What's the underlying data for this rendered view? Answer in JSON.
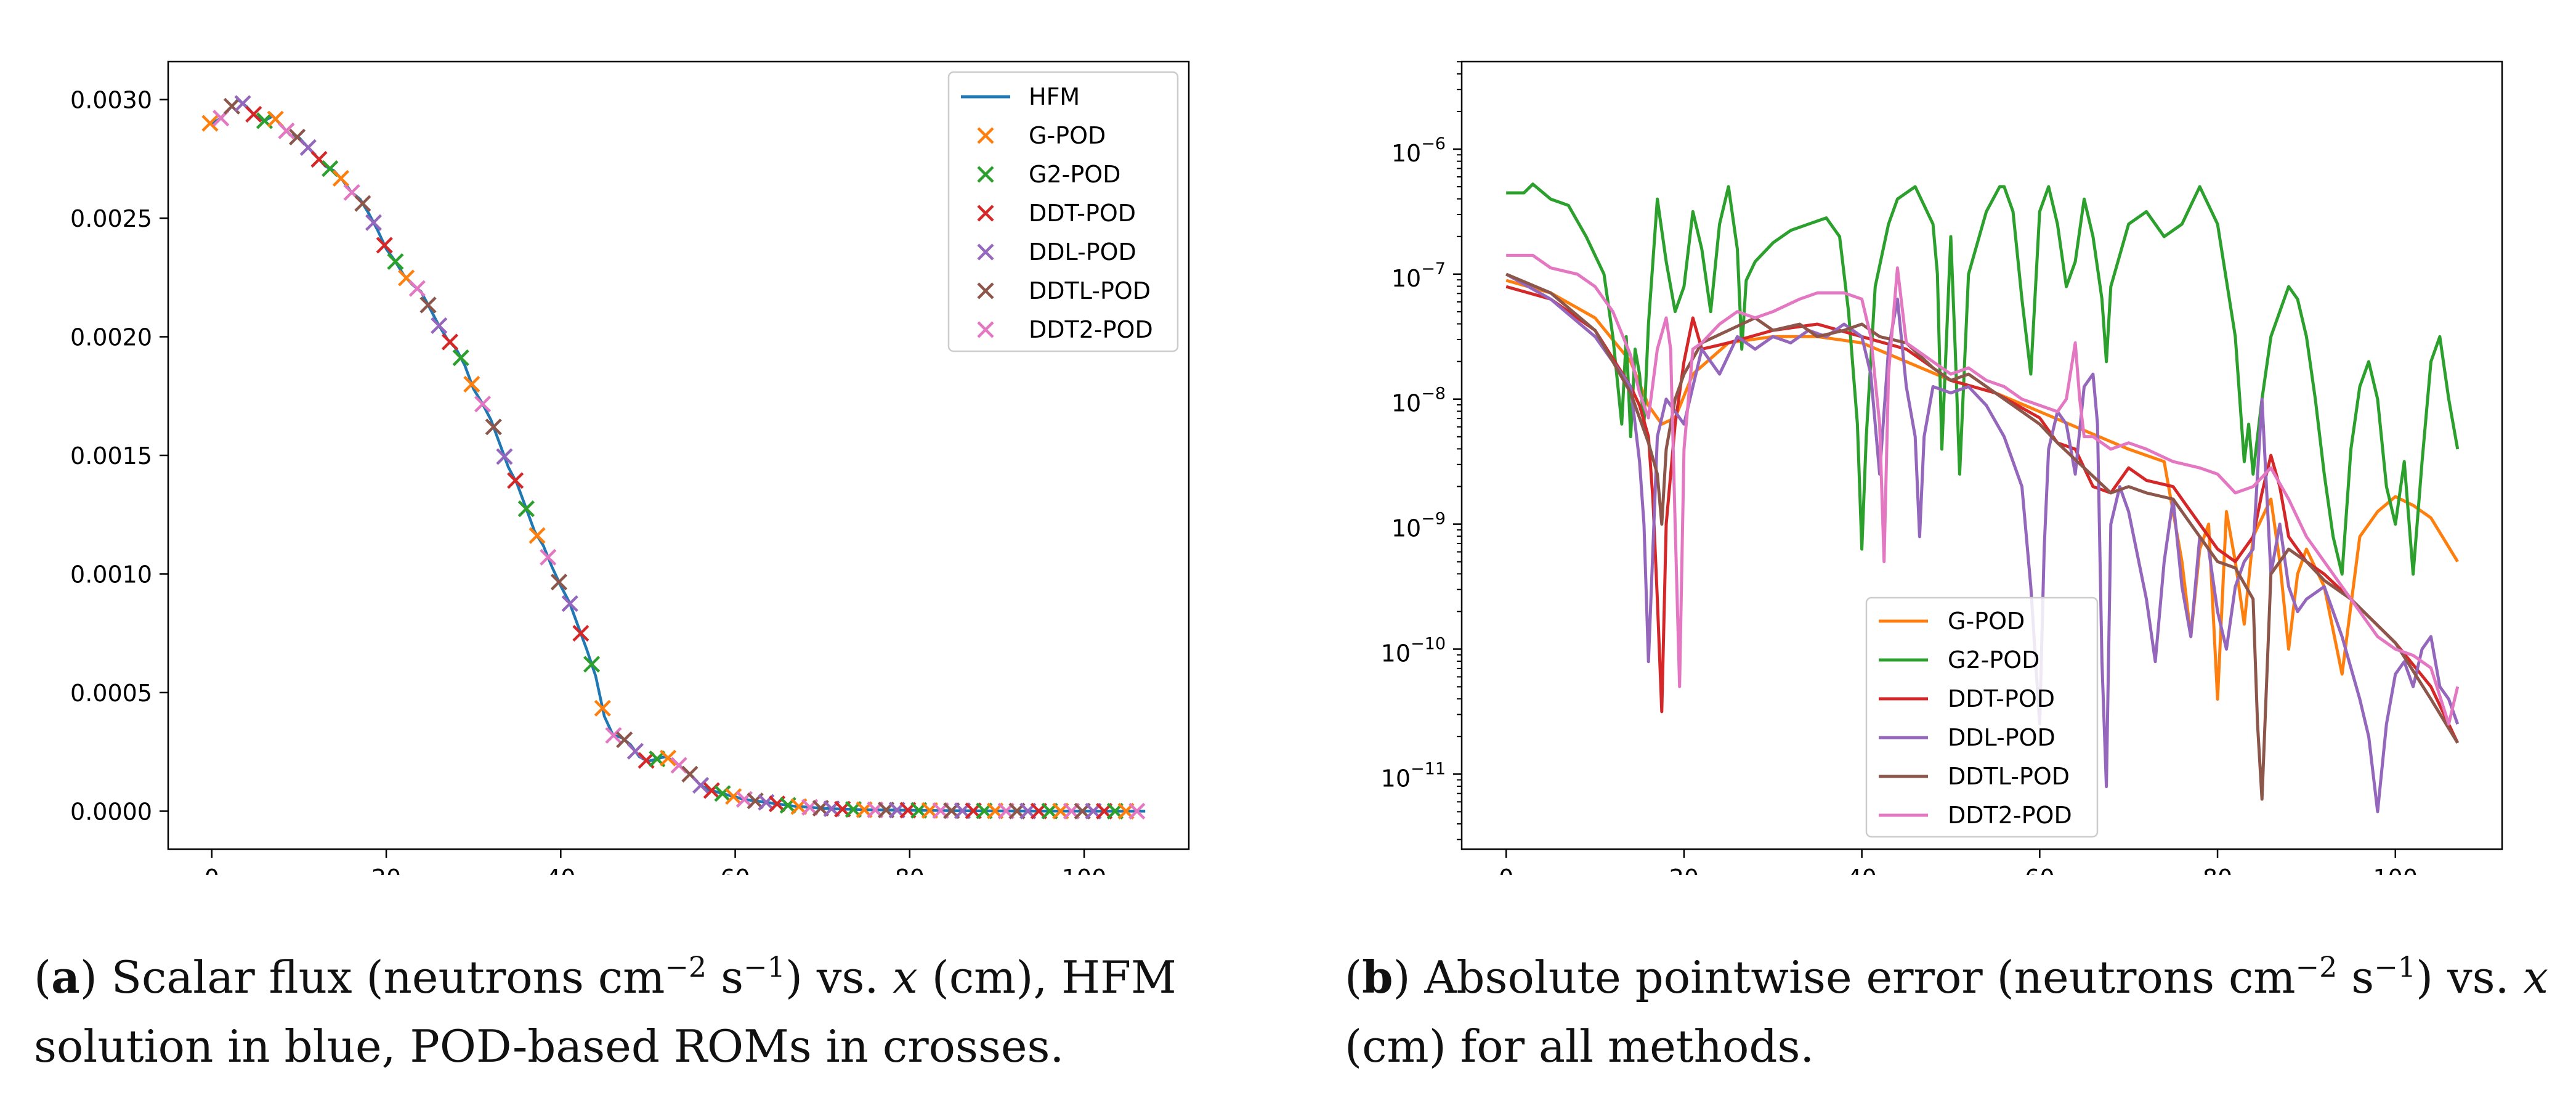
{
  "chart_data": [
    {
      "type": "line",
      "panel": "a",
      "xlim": [
        -5,
        112
      ],
      "ylim": [
        -0.00016,
        0.00316
      ],
      "yscale": "linear",
      "xticks": [
        0,
        20,
        40,
        60,
        80,
        100
      ],
      "yticks": [
        0,
        0.0005,
        0.001,
        0.0015,
        0.002,
        0.0025,
        0.003
      ],
      "xtick_labels": [
        "0",
        "20",
        "40",
        "60",
        "80",
        "100"
      ],
      "ytick_labels": [
        "0.0000",
        "0.0005",
        "0.0010",
        "0.0015",
        "0.0020",
        "0.0025",
        "0.0030"
      ],
      "legend_position": "top-right",
      "hfm_curve": {
        "x": [
          0,
          1,
          2,
          3,
          4,
          5,
          6,
          7,
          8,
          9,
          10,
          11,
          12,
          13,
          14,
          15,
          16,
          17,
          18,
          19,
          20,
          21,
          22,
          23,
          24,
          25,
          26,
          27,
          28,
          29,
          30,
          31,
          32,
          33,
          34,
          35,
          36,
          37,
          38,
          39,
          40,
          41,
          42,
          43,
          44,
          45,
          46,
          47,
          48,
          49,
          50,
          51,
          52,
          53,
          54,
          55,
          56,
          57,
          58,
          59,
          60,
          61,
          62,
          63,
          64,
          65,
          66,
          67,
          68,
          69,
          70,
          72,
          75,
          80,
          85,
          90,
          95,
          100,
          107
        ],
        "y": [
          0.0029,
          0.00292,
          0.00296,
          0.003,
          0.00297,
          0.00293,
          0.00291,
          0.00293,
          0.00289,
          0.00285,
          0.00284,
          0.0028,
          0.00276,
          0.00272,
          0.0027,
          0.00266,
          0.00261,
          0.00258,
          0.00252,
          0.00245,
          0.00237,
          0.00232,
          0.00226,
          0.00222,
          0.00219,
          0.00212,
          0.00205,
          0.00199,
          0.00195,
          0.00188,
          0.00178,
          0.00172,
          0.00165,
          0.00155,
          0.00145,
          0.00138,
          0.00128,
          0.00118,
          0.00112,
          0.00103,
          0.00095,
          0.00088,
          0.00078,
          0.00068,
          0.00057,
          0.0004,
          0.00032,
          0.00031,
          0.00028,
          0.00023,
          0.00021,
          0.00022,
          0.00023,
          0.00021,
          0.00018,
          0.00015,
          0.00011,
          9e-05,
          8e-05,
          7e-05,
          6e-05,
          5e-05,
          4.5e-05,
          4e-05,
          3.5e-05,
          3e-05,
          2.5e-05,
          2e-05,
          1.8e-05,
          1.5e-05,
          1.2e-05,
          9e-06,
          6e-06,
          4e-06,
          2e-06,
          1e-06,
          5e-07,
          2e-07,
          0
        ]
      },
      "series": [
        {
          "name": "HFM",
          "color": "#1f77b4",
          "kind": "line"
        },
        {
          "name": "G-POD",
          "color": "#ff7f0e",
          "kind": "x-marker"
        },
        {
          "name": "G2-POD",
          "color": "#2ca02c",
          "kind": "x-marker"
        },
        {
          "name": "DDT-POD",
          "color": "#d62728",
          "kind": "x-marker"
        },
        {
          "name": "DDL-POD",
          "color": "#9467bd",
          "kind": "x-marker"
        },
        {
          "name": "DDTL-POD",
          "color": "#8c564b",
          "kind": "x-marker"
        },
        {
          "name": "DDT2-POD",
          "color": "#e377c2",
          "kind": "x-marker"
        }
      ]
    },
    {
      "type": "line",
      "panel": "b",
      "xlim": [
        -5,
        112
      ],
      "ylim_log10": [
        -11.6,
        -5.3
      ],
      "yscale": "log",
      "xticks": [
        0,
        20,
        40,
        60,
        80,
        100
      ],
      "xtick_labels": [
        "0",
        "20",
        "40",
        "60",
        "80",
        "100"
      ],
      "ytick_values_log10": [
        -6,
        -7,
        -8,
        -9,
        -10,
        -11
      ],
      "ytick_labels": [
        {
          "base": "10",
          "exp": "−6"
        },
        {
          "base": "10",
          "exp": "−7"
        },
        {
          "base": "10",
          "exp": "−8"
        },
        {
          "base": "10",
          "exp": "−9"
        },
        {
          "base": "10",
          "exp": "−10"
        },
        {
          "base": "10",
          "exp": "−11"
        }
      ],
      "legend_position": "lower-center",
      "series": [
        {
          "name": "G-POD",
          "color": "#ff7f0e",
          "x": [
            0,
            5,
            10,
            14,
            16,
            17.5,
            19,
            21,
            25,
            30,
            35,
            40,
            45,
            50,
            55,
            60,
            65,
            70,
            74,
            76,
            77,
            78,
            79,
            80,
            81,
            82,
            83,
            84,
            86,
            87,
            88,
            89,
            90,
            92,
            94,
            96,
            98,
            100,
            102,
            104,
            107
          ],
          "y": [
            -7.05,
            -7.15,
            -7.35,
            -7.7,
            -8.05,
            -8.2,
            -8.15,
            -7.8,
            -7.55,
            -7.5,
            -7.5,
            -7.55,
            -7.7,
            -7.85,
            -7.95,
            -8.1,
            -8.25,
            -8.4,
            -8.5,
            -9.3,
            -9.9,
            -9.2,
            -9.0,
            -10.4,
            -8.9,
            -9.3,
            -9.8,
            -9.1,
            -8.8,
            -9.3,
            -10.0,
            -9.4,
            -9.2,
            -9.5,
            -10.2,
            -9.1,
            -8.9,
            -8.78,
            -8.85,
            -8.95,
            -9.3
          ]
        },
        {
          "name": "G2-POD",
          "color": "#2ca02c",
          "x": [
            0,
            2,
            3,
            5,
            7,
            9,
            11,
            12,
            13,
            13.5,
            14,
            14.5,
            15,
            15.5,
            16,
            16.5,
            17,
            18,
            19,
            20,
            21,
            22,
            23,
            24,
            25,
            26,
            26.5,
            27,
            28,
            30,
            32,
            34,
            36,
            37.5,
            38.5,
            39.5,
            40,
            40.5,
            41.5,
            43,
            44,
            46,
            47,
            48,
            48.5,
            49,
            50,
            50.5,
            51,
            52,
            54,
            55.5,
            56,
            57,
            58,
            59,
            60,
            61,
            62,
            63,
            64,
            65,
            66,
            67,
            67.5,
            68,
            70,
            72,
            74,
            76,
            77,
            78,
            80,
            82,
            83,
            83.5,
            84,
            85,
            86,
            87,
            88,
            89,
            90,
            91,
            92,
            93,
            94,
            95,
            96,
            97,
            98,
            99,
            100,
            101,
            102,
            103,
            104,
            105,
            106,
            107
          ],
          "y": [
            -6.35,
            -6.35,
            -6.28,
            -6.4,
            -6.45,
            -6.7,
            -7.0,
            -7.5,
            -8.2,
            -7.5,
            -8.3,
            -7.6,
            -7.8,
            -8.2,
            -7.4,
            -6.9,
            -6.4,
            -6.9,
            -7.3,
            -7.1,
            -6.5,
            -6.8,
            -7.3,
            -6.6,
            -6.3,
            -6.8,
            -7.6,
            -7.05,
            -6.9,
            -6.75,
            -6.65,
            -6.6,
            -6.55,
            -6.7,
            -7.3,
            -8.2,
            -9.2,
            -8.3,
            -7.1,
            -6.6,
            -6.4,
            -6.3,
            -6.45,
            -6.6,
            -7.0,
            -8.4,
            -6.7,
            -7.6,
            -8.6,
            -7.0,
            -6.5,
            -6.3,
            -6.3,
            -6.5,
            -7.2,
            -7.8,
            -6.5,
            -6.3,
            -6.6,
            -7.1,
            -6.9,
            -6.4,
            -6.7,
            -7.2,
            -7.7,
            -7.1,
            -6.6,
            -6.5,
            -6.7,
            -6.6,
            -6.45,
            -6.3,
            -6.6,
            -7.5,
            -8.5,
            -8.2,
            -8.6,
            -8.0,
            -7.5,
            -7.3,
            -7.1,
            -7.2,
            -7.5,
            -8.0,
            -8.6,
            -9.1,
            -9.4,
            -8.4,
            -7.9,
            -7.7,
            -8.0,
            -8.7,
            -9.0,
            -8.5,
            -9.4,
            -8.5,
            -7.7,
            -7.5,
            -8.0,
            -8.4
          ]
        },
        {
          "name": "DDT-POD",
          "color": "#d62728",
          "x": [
            0,
            5,
            10,
            14,
            15,
            16,
            16.5,
            17,
            17.5,
            18,
            19,
            20,
            21,
            22,
            25,
            30,
            35,
            40,
            45,
            48,
            50,
            55,
            60,
            62,
            64,
            66,
            68,
            70,
            72,
            75,
            78,
            80,
            82,
            84,
            85,
            86,
            87,
            88,
            90,
            92,
            95,
            100,
            104,
            107
          ],
          "y": [
            -7.1,
            -7.2,
            -7.45,
            -7.9,
            -8.05,
            -8.3,
            -8.8,
            -9.6,
            -10.5,
            -9.0,
            -8.2,
            -7.7,
            -7.35,
            -7.6,
            -7.55,
            -7.45,
            -7.4,
            -7.5,
            -7.6,
            -7.75,
            -7.85,
            -7.95,
            -8.15,
            -8.35,
            -8.4,
            -8.7,
            -8.75,
            -8.55,
            -8.65,
            -8.7,
            -9.0,
            -9.2,
            -9.3,
            -9.1,
            -8.75,
            -8.45,
            -8.7,
            -9.1,
            -9.3,
            -9.4,
            -9.6,
            -9.95,
            -10.3,
            -10.75
          ]
        },
        {
          "name": "DDL-POD",
          "color": "#9467bd",
          "x": [
            0,
            5,
            10,
            14,
            15,
            15.5,
            16,
            16.5,
            17,
            18,
            20,
            21,
            22,
            24,
            26,
            28,
            30,
            32,
            34,
            36,
            38,
            40,
            41,
            42,
            43,
            44,
            45,
            46,
            46.5,
            47,
            48,
            50,
            52,
            54,
            56,
            58,
            59,
            60,
            60.5,
            61,
            62,
            63,
            64,
            65,
            66,
            66.5,
            67,
            67.5,
            68,
            69,
            70,
            72,
            73,
            74,
            75,
            76,
            77,
            78,
            79,
            80,
            81,
            82,
            83,
            84,
            85,
            86,
            87,
            88,
            89,
            90,
            92,
            94,
            96,
            97,
            98,
            99,
            100,
            101,
            102,
            103,
            104,
            105,
            106,
            107
          ],
          "y": [
            -7.0,
            -7.2,
            -7.5,
            -7.9,
            -8.5,
            -9.0,
            -10.1,
            -9.2,
            -8.3,
            -8.0,
            -8.2,
            -7.9,
            -7.6,
            -7.8,
            -7.5,
            -7.6,
            -7.5,
            -7.55,
            -7.45,
            -7.5,
            -7.4,
            -7.5,
            -7.8,
            -8.6,
            -7.6,
            -7.2,
            -7.9,
            -8.3,
            -9.1,
            -8.3,
            -7.9,
            -7.95,
            -7.9,
            -8.05,
            -8.3,
            -8.7,
            -9.5,
            -10.6,
            -9.2,
            -8.4,
            -8.1,
            -8.2,
            -8.6,
            -7.9,
            -7.8,
            -8.2,
            -10.1,
            -11.1,
            -9.0,
            -8.7,
            -8.9,
            -9.6,
            -10.1,
            -9.3,
            -8.8,
            -9.5,
            -9.9,
            -9.1,
            -9.2,
            -9.7,
            -10.0,
            -9.5,
            -9.3,
            -9.2,
            -8.0,
            -9.4,
            -9.0,
            -9.5,
            -9.7,
            -9.6,
            -9.5,
            -9.9,
            -10.4,
            -10.7,
            -11.3,
            -10.6,
            -10.2,
            -10.1,
            -10.3,
            -10.0,
            -9.9,
            -10.3,
            -10.4,
            -10.6
          ]
        },
        {
          "name": "DDTL-POD",
          "color": "#8c564b",
          "x": [
            0,
            5,
            10,
            14,
            15,
            16,
            17,
            17.5,
            18,
            19,
            20,
            22,
            25,
            28,
            30,
            33,
            35,
            38,
            40,
            42,
            45,
            48,
            50,
            52,
            55,
            58,
            60,
            62,
            65,
            68,
            70,
            72,
            75,
            78,
            80,
            82,
            84,
            84.5,
            85,
            86,
            88,
            90,
            92,
            95,
            100,
            104,
            107
          ],
          "y": [
            -7.0,
            -7.15,
            -7.45,
            -7.95,
            -8.15,
            -8.35,
            -8.6,
            -9.0,
            -8.4,
            -8.0,
            -7.8,
            -7.55,
            -7.45,
            -7.35,
            -7.45,
            -7.4,
            -7.5,
            -7.45,
            -7.4,
            -7.5,
            -7.55,
            -7.75,
            -7.85,
            -7.8,
            -7.95,
            -8.1,
            -8.2,
            -8.35,
            -8.55,
            -8.75,
            -8.7,
            -8.75,
            -8.8,
            -9.1,
            -9.3,
            -9.35,
            -9.6,
            -10.6,
            -11.2,
            -9.4,
            -9.2,
            -9.3,
            -9.45,
            -9.6,
            -9.95,
            -10.4,
            -10.75
          ]
        },
        {
          "name": "DDT2-POD",
          "color": "#e377c2",
          "x": [
            0,
            3,
            5,
            8,
            10,
            12,
            14,
            15,
            16,
            17,
            18,
            18.5,
            19,
            19.5,
            20,
            21,
            22,
            24,
            26,
            28,
            30,
            33,
            35,
            38,
            40,
            41,
            42,
            42.5,
            43,
            44,
            45,
            46,
            48,
            50,
            52,
            54,
            56,
            58,
            60,
            62,
            63,
            64,
            64.5,
            65,
            66,
            68,
            70,
            72,
            75,
            78,
            80,
            82,
            84,
            86,
            88,
            90,
            92,
            94,
            96,
            98,
            100,
            102,
            104,
            106,
            107
          ],
          "y": [
            -6.85,
            -6.85,
            -6.95,
            -7.0,
            -7.1,
            -7.3,
            -7.65,
            -7.95,
            -8.15,
            -7.6,
            -7.35,
            -7.6,
            -9.0,
            -10.3,
            -8.4,
            -7.6,
            -7.55,
            -7.4,
            -7.3,
            -7.35,
            -7.3,
            -7.2,
            -7.15,
            -7.15,
            -7.2,
            -7.5,
            -8.2,
            -9.3,
            -7.8,
            -6.95,
            -7.55,
            -7.6,
            -7.7,
            -7.8,
            -7.75,
            -7.85,
            -7.9,
            -8.0,
            -8.05,
            -8.1,
            -8.0,
            -7.55,
            -8.0,
            -8.3,
            -8.3,
            -8.4,
            -8.35,
            -8.4,
            -8.5,
            -8.55,
            -8.6,
            -8.75,
            -8.7,
            -8.55,
            -8.8,
            -9.1,
            -9.3,
            -9.5,
            -9.7,
            -9.9,
            -10.0,
            -10.05,
            -10.15,
            -10.6,
            -10.3
          ]
        }
      ]
    }
  ],
  "captions": {
    "a": {
      "label": "a",
      "text_1": ") Scalar flux (neutrons cm",
      "sup_1": "−2",
      "text_2": " s",
      "sup_2": "−1",
      "text_3": ") vs. ",
      "var": "x",
      "text_4": " (cm), HFM solution in blue, POD-based ROMs in crosses."
    },
    "b": {
      "label": "b",
      "text_1": ") Absolute pointwise error (neutrons cm",
      "sup_1": "−2",
      "text_2": " s",
      "sup_2": "−1",
      "text_3": ") vs. ",
      "var": "x",
      "text_4": " (cm) for all methods."
    }
  }
}
